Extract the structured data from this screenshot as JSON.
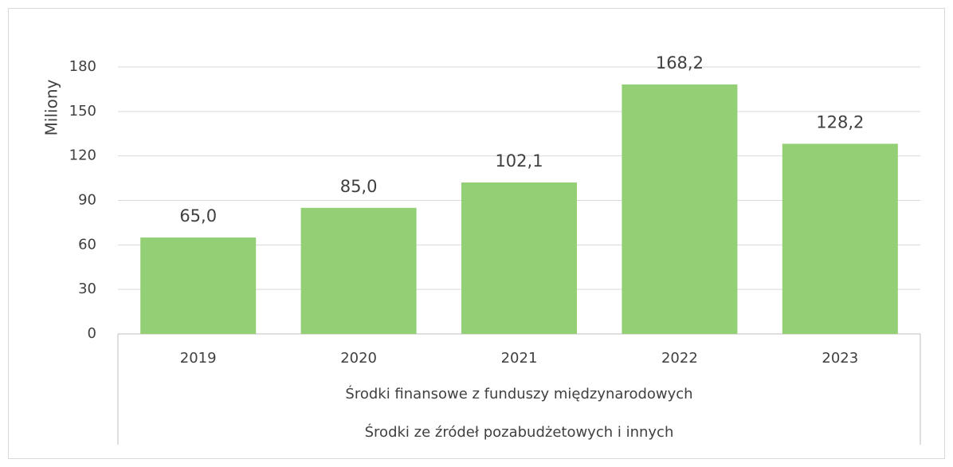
{
  "chart_data": {
    "type": "bar",
    "y_axis_label": "Miliony",
    "categories": [
      "2019",
      "2020",
      "2021",
      "2022",
      "2023"
    ],
    "category_groups": [
      "Środki finansowe z funduszy międzynarodowych",
      "Środki ze źródeł pozabudżetowych i innych"
    ],
    "values": [
      65.0,
      85.0,
      102.1,
      168.2,
      128.2
    ],
    "value_labels": [
      "65,0",
      "85,0",
      "102,1",
      "168,2",
      "128,2"
    ],
    "color": "#93cf74",
    "ylim": [
      0,
      180
    ],
    "yticks": [
      0,
      30,
      60,
      90,
      120,
      150,
      180
    ],
    "grid": true
  }
}
